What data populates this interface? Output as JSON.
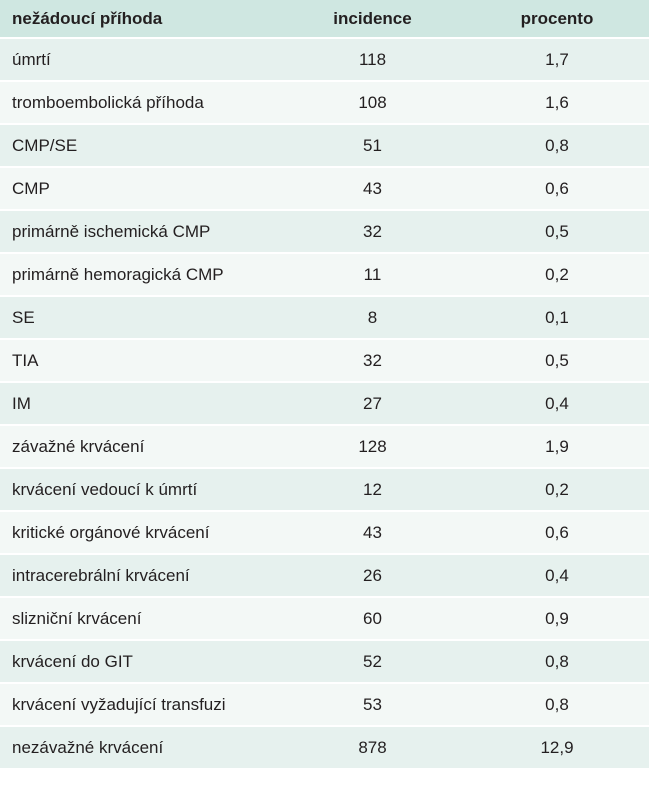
{
  "table": {
    "headers": [
      "nežádoucí příhoda",
      "incidence",
      "procento"
    ],
    "rows": [
      [
        "úmrtí",
        "118",
        "1,7"
      ],
      [
        "tromboembolická příhoda",
        "108",
        "1,6"
      ],
      [
        "CMP/SE",
        "51",
        "0,8"
      ],
      [
        "CMP",
        "43",
        "0,6"
      ],
      [
        "primárně ischemická CMP",
        "32",
        "0,5"
      ],
      [
        "primárně hemoragická CMP",
        "11",
        "0,2"
      ],
      [
        "SE",
        "8",
        "0,1"
      ],
      [
        "TIA",
        "32",
        "0,5"
      ],
      [
        "IM",
        "27",
        "0,4"
      ],
      [
        "závažné krvácení",
        "128",
        "1,9"
      ],
      [
        "krvácení vedoucí k úmrtí",
        "12",
        "0,2"
      ],
      [
        "kritické orgánové krvácení",
        "43",
        "0,6"
      ],
      [
        "intracerebrální krvácení",
        "26",
        "0,4"
      ],
      [
        "slizniční krvácení",
        "60",
        "0,9"
      ],
      [
        "krvácení do GIT",
        "52",
        "0,8"
      ],
      [
        "krvácení vyžadující transfuzi",
        "53",
        "0,8"
      ],
      [
        "nezávažné krvácení",
        "878",
        "12,9"
      ]
    ]
  }
}
